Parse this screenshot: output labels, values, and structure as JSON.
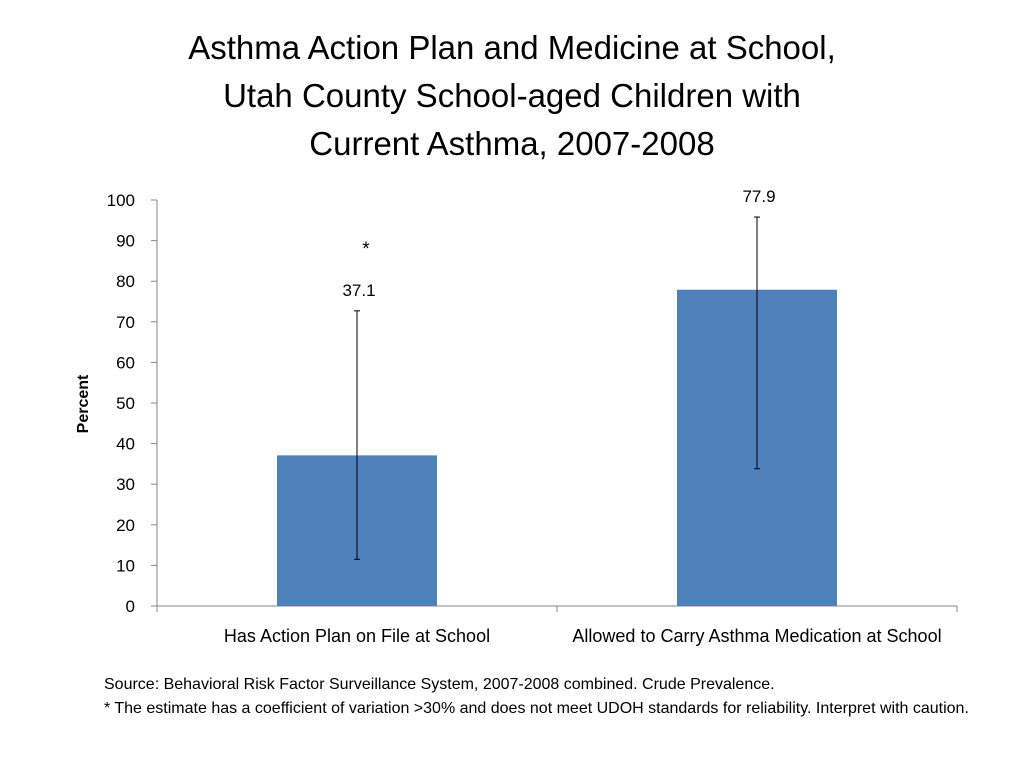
{
  "title_lines": [
    "Asthma Action Plan and Medicine at School,",
    "Utah County School-aged Children with",
    "Current Asthma, 2007-2008"
  ],
  "colors": {
    "bar": "#4f81bd",
    "axis": "#868686",
    "text": "#000000"
  },
  "chart_data": {
    "type": "bar",
    "title": "Asthma Action Plan and Medicine at School, Utah County School-aged Children with Current Asthma, 2007-2008",
    "categories": [
      "Has Action Plan on File at School",
      "Allowed to Carry Asthma Medication at School"
    ],
    "values": [
      37.1,
      77.9
    ],
    "value_labels": [
      "37.1",
      "77.9"
    ],
    "error_bars": [
      {
        "low": 11.5,
        "high": 72.7
      },
      {
        "low": 33.8,
        "high": 95.8
      }
    ],
    "annotations": [
      {
        "category_index": 0,
        "text": "*"
      }
    ],
    "xlabel": "",
    "ylabel": "Percent",
    "ylim": [
      0,
      100
    ],
    "yticks": [
      0,
      10,
      20,
      30,
      40,
      50,
      60,
      70,
      80,
      90,
      100
    ],
    "grid": false,
    "legend": "none"
  },
  "footer": {
    "source": "Source: Behavioral Risk Factor Surveillance System, 2007-2008 combined. Crude Prevalence.",
    "note": "* The estimate has a coefficient of variation >30% and does not meet UDOH standards for reliability. Interpret with caution."
  }
}
